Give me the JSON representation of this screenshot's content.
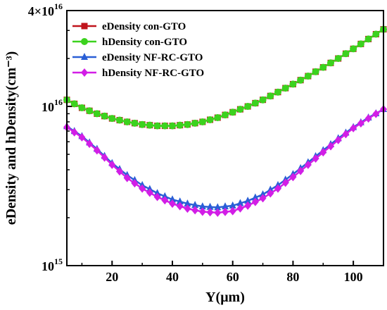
{
  "chart_data": {
    "type": "line",
    "xlabel": "Y(μm)",
    "ylabel": "eDensity and hDensity(cm⁻³)",
    "ylim": [
      1000000000000000.0,
      4e+16
    ],
    "xlim": [
      5,
      110
    ],
    "y_scale": "log",
    "x_ticks": [
      20,
      40,
      60,
      80,
      100
    ],
    "y_tick_labels": [
      {
        "base": "10",
        "exp": "15",
        "value": 1000000000000000.0
      },
      {
        "base": "10",
        "exp": "16",
        "value": 1e+16
      },
      {
        "base": "4×10",
        "exp": "16",
        "value": 4e+16
      }
    ],
    "grid": false,
    "legend_position": "top-left",
    "series": [
      {
        "name": "eDensity con-GTO",
        "color": "#c0141c",
        "marker": "square",
        "x": [
          5,
          10,
          15,
          20,
          25,
          30,
          35,
          40,
          45,
          50,
          55,
          60,
          65,
          70,
          75,
          80,
          85,
          90,
          95,
          100,
          105,
          110
        ],
        "y": [
          1.1e+16,
          9800000000000000.0,
          9000000000000000.0,
          8400000000000000.0,
          8000000000000000.0,
          7700000000000000.0,
          7550000000000000.0,
          7550000000000000.0,
          7700000000000000.0,
          8000000000000000.0,
          8500000000000000.0,
          9200000000000000.0,
          1e+16,
          1.1e+16,
          1.23e+16,
          1.38e+16,
          1.55e+16,
          1.76e+16,
          2e+16,
          2.3e+16,
          2.65e+16,
          3.05e+16
        ]
      },
      {
        "name": "hDensity con-GTO",
        "color": "#3cd21e",
        "marker": "circle",
        "x": [
          5,
          10,
          15,
          20,
          25,
          30,
          35,
          40,
          45,
          50,
          55,
          60,
          65,
          70,
          75,
          80,
          85,
          90,
          95,
          100,
          105,
          110
        ],
        "y": [
          1.1e+16,
          9800000000000000.0,
          9000000000000000.0,
          8400000000000000.0,
          8000000000000000.0,
          7700000000000000.0,
          7550000000000000.0,
          7550000000000000.0,
          7700000000000000.0,
          8000000000000000.0,
          8500000000000000.0,
          9200000000000000.0,
          1e+16,
          1.1e+16,
          1.23e+16,
          1.38e+16,
          1.55e+16,
          1.76e+16,
          2e+16,
          2.3e+16,
          2.65e+16,
          3.05e+16
        ]
      },
      {
        "name": "eDensity NF-RC-GTO",
        "color": "#2a5fd6",
        "marker": "triangle",
        "x": [
          5,
          10,
          15,
          20,
          25,
          30,
          35,
          40,
          45,
          50,
          55,
          60,
          65,
          70,
          75,
          80,
          85,
          90,
          95,
          100,
          105,
          110
        ],
        "y": [
          7500000000000000.0,
          6500000000000000.0,
          5400000000000000.0,
          4400000000000000.0,
          3700000000000000.0,
          3200000000000000.0,
          2850000000000000.0,
          2600000000000000.0,
          2450000000000000.0,
          2350000000000000.0,
          2320000000000000.0,
          2380000000000000.0,
          2550000000000000.0,
          2800000000000000.0,
          3200000000000000.0,
          3750000000000000.0,
          4450000000000000.0,
          5300000000000000.0,
          6300000000000000.0,
          7400000000000000.0,
          8500000000000000.0,
          9600000000000000.0
        ]
      },
      {
        "name": "hDensity NF-RC-GTO",
        "color": "#d21ee6",
        "marker": "diamond",
        "x": [
          5,
          10,
          15,
          20,
          25,
          30,
          35,
          40,
          45,
          50,
          55,
          60,
          65,
          70,
          75,
          80,
          85,
          90,
          95,
          100,
          105,
          110
        ],
        "y": [
          7400000000000000.0,
          6400000000000000.0,
          5300000000000000.0,
          4300000000000000.0,
          3550000000000000.0,
          3050000000000000.0,
          2700000000000000.0,
          2450000000000000.0,
          2280000000000000.0,
          2180000000000000.0,
          2150000000000000.0,
          2200000000000000.0,
          2380000000000000.0,
          2650000000000000.0,
          3050000000000000.0,
          3600000000000000.0,
          4300000000000000.0,
          5150000000000000.0,
          6150000000000000.0,
          7300000000000000.0,
          8400000000000000.0,
          9600000000000000.0
        ]
      }
    ]
  }
}
